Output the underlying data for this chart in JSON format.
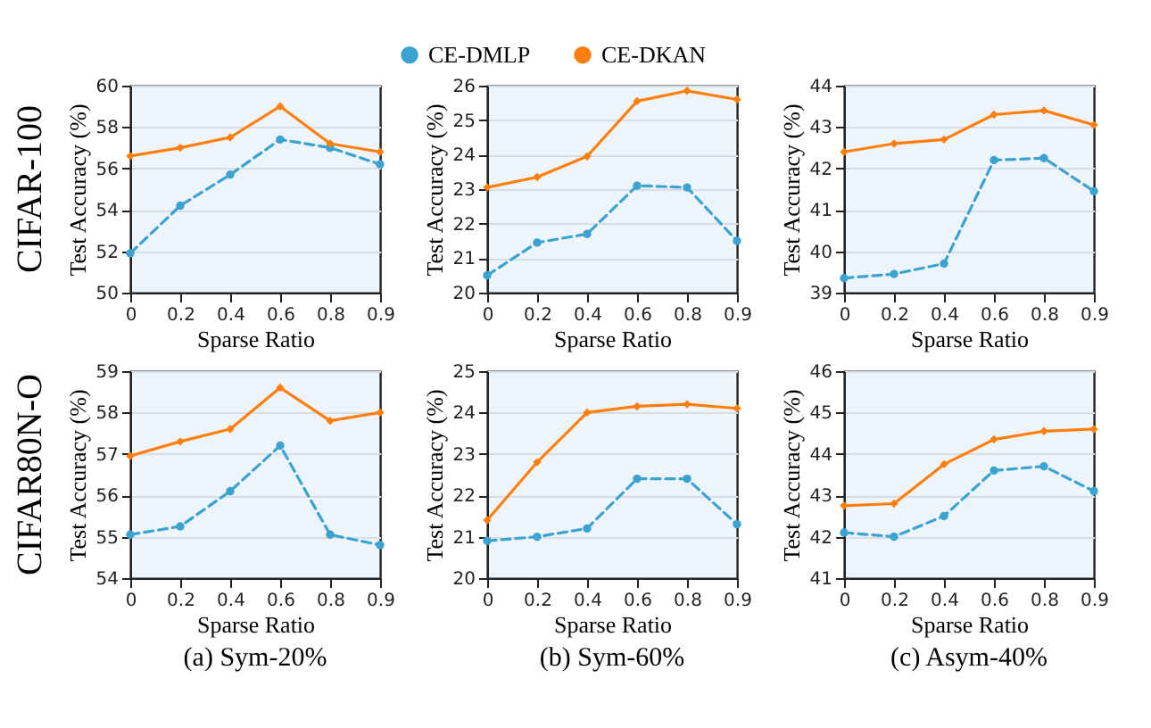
{
  "chart_data": [
    {
      "type": "line",
      "xlabel": "Sparse Ratio",
      "ylabel": "Test Accuracy (%)",
      "annotations": [
        "CIFAR-100"
      ],
      "categories": [
        "0",
        "0.2",
        "0.4",
        "0.6",
        "0.8",
        "0.9"
      ],
      "ylim": [
        50,
        60
      ],
      "yticks": [
        50,
        52,
        54,
        56,
        58,
        60
      ],
      "grid": "y",
      "legend": "top",
      "series": [
        {
          "name": "CE-DMLP",
          "color": "#3ba3cf",
          "marker": "circle",
          "line_style": "dashed",
          "values": [
            51.9,
            54.2,
            55.7,
            57.4,
            57.0,
            56.2
          ]
        },
        {
          "name": "CE-DKAN",
          "color": "#ff7f0e",
          "marker": "diamond",
          "line_style": "solid",
          "values": [
            56.6,
            57.0,
            57.5,
            59.0,
            57.2,
            56.8
          ]
        }
      ]
    },
    {
      "type": "line",
      "xlabel": "Sparse Ratio",
      "ylabel": "Test Accuracy (%)",
      "categories": [
        "0",
        "0.2",
        "0.4",
        "0.6",
        "0.8",
        "0.9"
      ],
      "ylim": [
        20,
        26
      ],
      "yticks": [
        20,
        21,
        22,
        23,
        24,
        25,
        26
      ],
      "grid": "y",
      "series": [
        {
          "name": "CE-DMLP",
          "color": "#3ba3cf",
          "marker": "circle",
          "line_style": "dashed",
          "values": [
            20.5,
            21.45,
            21.7,
            23.1,
            23.05,
            21.5
          ]
        },
        {
          "name": "CE-DKAN",
          "color": "#ff7f0e",
          "marker": "diamond",
          "line_style": "solid",
          "values": [
            23.05,
            23.35,
            23.95,
            25.55,
            25.85,
            25.6
          ]
        }
      ]
    },
    {
      "type": "line",
      "xlabel": "Sparse Ratio",
      "ylabel": "Test Accuracy (%)",
      "categories": [
        "0",
        "0.2",
        "0.4",
        "0.6",
        "0.8",
        "0.9"
      ],
      "ylim": [
        39,
        44
      ],
      "yticks": [
        39,
        40,
        41,
        42,
        43,
        44
      ],
      "grid": "y",
      "series": [
        {
          "name": "CE-DMLP",
          "color": "#3ba3cf",
          "marker": "circle",
          "line_style": "dashed",
          "values": [
            39.35,
            39.45,
            39.7,
            42.2,
            42.25,
            41.45
          ]
        },
        {
          "name": "CE-DKAN",
          "color": "#ff7f0e",
          "marker": "diamond",
          "line_style": "solid",
          "values": [
            42.4,
            42.6,
            42.7,
            43.3,
            43.4,
            43.05
          ]
        }
      ]
    },
    {
      "type": "line",
      "title": "(a) Sym-20%",
      "xlabel": "Sparse Ratio",
      "ylabel": "Test Accuracy (%)",
      "annotations": [
        "CIFAR80N-O"
      ],
      "categories": [
        "0",
        "0.2",
        "0.4",
        "0.6",
        "0.8",
        "0.9"
      ],
      "ylim": [
        54,
        59
      ],
      "yticks": [
        54,
        55,
        56,
        57,
        58,
        59
      ],
      "grid": "y",
      "series": [
        {
          "name": "CE-DMLP",
          "color": "#3ba3cf",
          "marker": "circle",
          "line_style": "dashed",
          "values": [
            55.05,
            55.25,
            56.1,
            57.2,
            55.05,
            54.8
          ]
        },
        {
          "name": "CE-DKAN",
          "color": "#ff7f0e",
          "marker": "diamond",
          "line_style": "solid",
          "values": [
            56.95,
            57.3,
            57.6,
            58.6,
            57.8,
            58.0
          ]
        }
      ]
    },
    {
      "type": "line",
      "title": "(b) Sym-60%",
      "xlabel": "Sparse Ratio",
      "ylabel": "Test Accuracy (%)",
      "categories": [
        "0",
        "0.2",
        "0.4",
        "0.6",
        "0.8",
        "0.9"
      ],
      "ylim": [
        20,
        25
      ],
      "yticks": [
        20,
        21,
        22,
        23,
        24,
        25
      ],
      "grid": "y",
      "series": [
        {
          "name": "CE-DMLP",
          "color": "#3ba3cf",
          "marker": "circle",
          "line_style": "dashed",
          "values": [
            20.9,
            21.0,
            21.2,
            22.4,
            22.4,
            21.3
          ]
        },
        {
          "name": "CE-DKAN",
          "color": "#ff7f0e",
          "marker": "diamond",
          "line_style": "solid",
          "values": [
            21.4,
            22.8,
            24.0,
            24.15,
            24.2,
            24.1
          ]
        }
      ]
    },
    {
      "type": "line",
      "title": "(c) Asym-40%",
      "xlabel": "Sparse Ratio",
      "ylabel": "Test Accuracy (%)",
      "categories": [
        "0",
        "0.2",
        "0.4",
        "0.6",
        "0.8",
        "0.9"
      ],
      "ylim": [
        41,
        46
      ],
      "yticks": [
        41,
        42,
        43,
        44,
        45,
        46
      ],
      "grid": "y",
      "series": [
        {
          "name": "CE-DMLP",
          "color": "#3ba3cf",
          "marker": "circle",
          "line_style": "dashed",
          "values": [
            42.1,
            42.0,
            42.5,
            43.6,
            43.7,
            43.1
          ]
        },
        {
          "name": "CE-DKAN",
          "color": "#ff7f0e",
          "marker": "diamond",
          "line_style": "solid",
          "values": [
            42.75,
            42.8,
            43.75,
            44.35,
            44.55,
            44.6
          ]
        }
      ]
    }
  ]
}
